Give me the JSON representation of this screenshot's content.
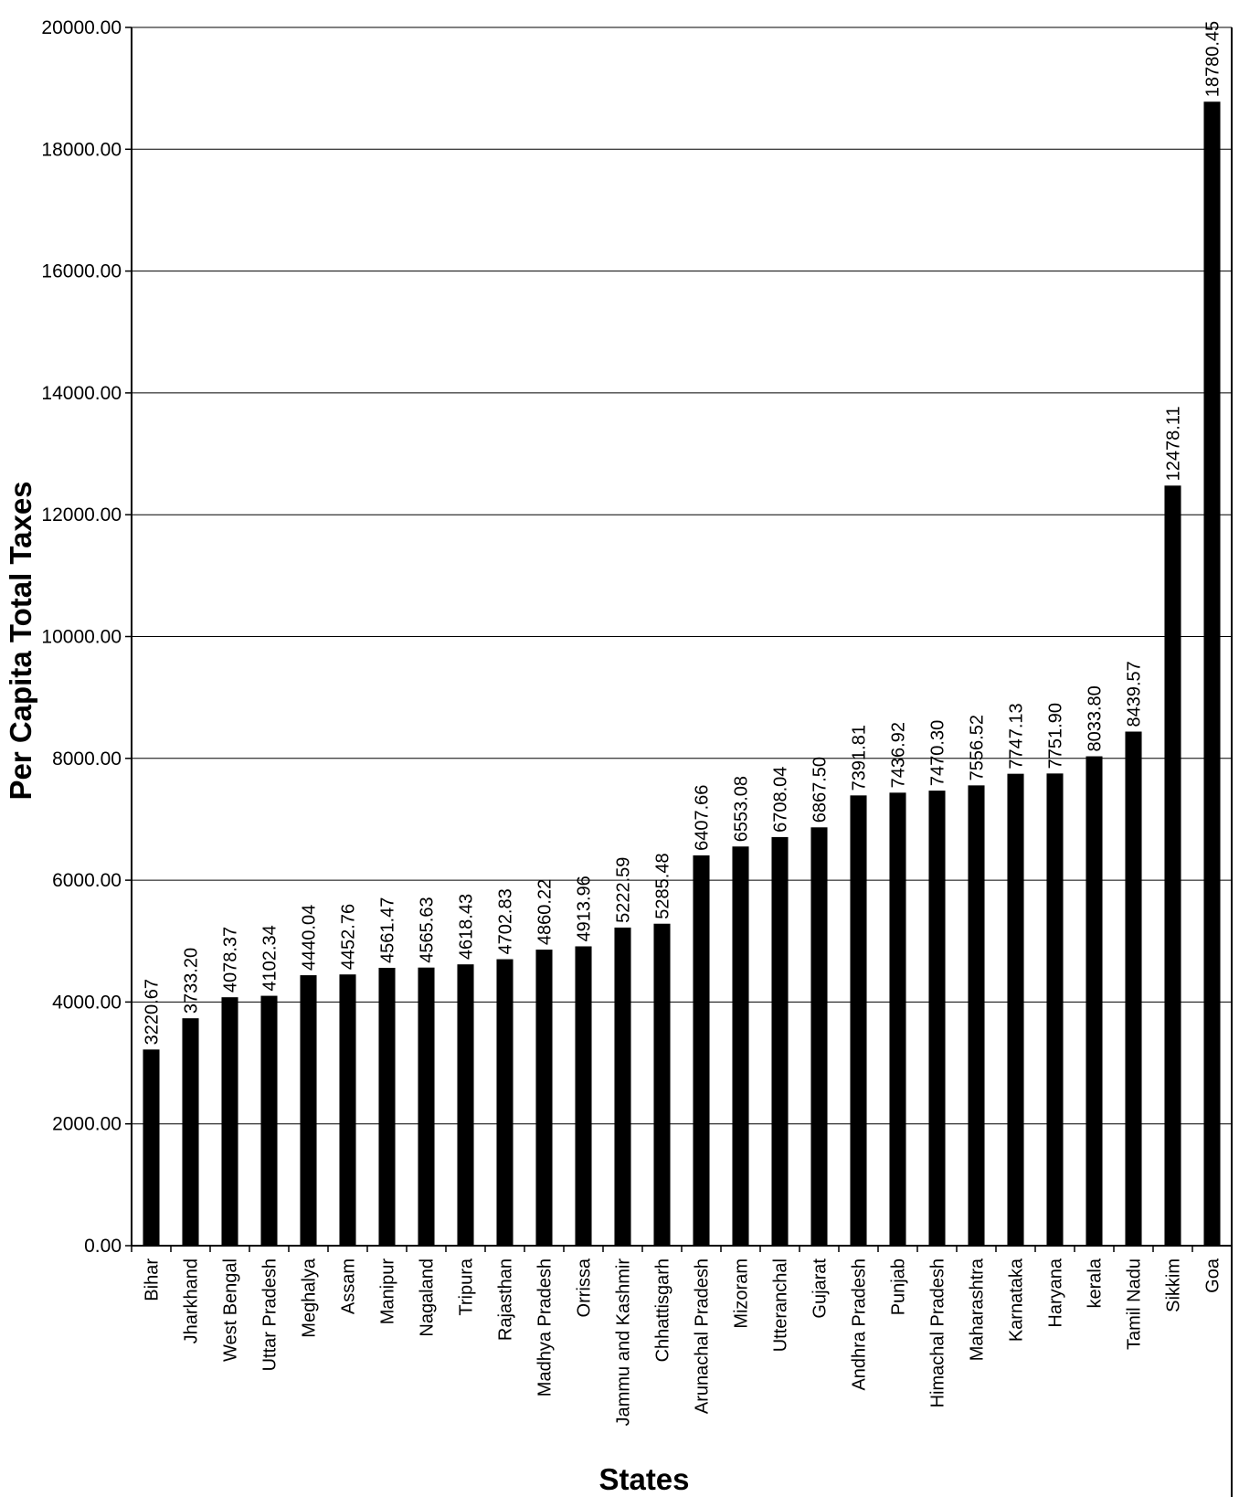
{
  "chart_data": {
    "type": "bar",
    "title": "",
    "xlabel": "States",
    "ylabel": "Per Capita Total Taxes",
    "ylim": [
      0,
      20000
    ],
    "yticks": [
      "0.00",
      "2000.00",
      "4000.00",
      "6000.00",
      "8000.00",
      "10000.00",
      "12000.00",
      "14000.00",
      "16000.00",
      "18000.00",
      "20000.00"
    ],
    "grid": true,
    "legend": "none",
    "bar_color": "#000000",
    "categories": [
      "Bihar",
      "Jharkhand",
      "West Bengal",
      "Uttar Pradesh",
      "Meghalya",
      "Assam",
      "Manipur",
      "Nagaland",
      "Tripura",
      "Rajasthan",
      "Madhya Pradesh",
      "Orrissa",
      "Jammu and Kashmir",
      "Chhattisgarh",
      "Arunachal Pradesh",
      "Mizoram",
      "Utteranchal",
      "Gujarat",
      "Andhra Pradesh",
      "Punjab",
      "Himachal Pradesh",
      "Maharashtra",
      "Karnataka",
      "Haryana",
      "kerala",
      "Tamil Nadu",
      "Sikkim",
      "Goa"
    ],
    "values": [
      3220.67,
      3733.2,
      4078.37,
      4102.34,
      4440.04,
      4452.76,
      4561.47,
      4565.63,
      4618.43,
      4702.83,
      4860.22,
      4913.96,
      5222.59,
      5285.48,
      6407.66,
      6553.08,
      6708.04,
      6867.5,
      7391.81,
      7436.92,
      7470.3,
      7556.52,
      7747.13,
      7751.9,
      8033.8,
      8439.57,
      12478.11,
      18780.45
    ],
    "data_labels": [
      "3220.67",
      "3733.20",
      "4078.37",
      "4102.34",
      "4440.04",
      "4452.76",
      "4561.47",
      "4565.63",
      "4618.43",
      "4702.83",
      "4860.22",
      "4913.96",
      "5222.59",
      "5285.48",
      "6407.66",
      "6553.08",
      "6708.04",
      "6867.50",
      "7391.81",
      "7436.92",
      "7470.30",
      "7556.52",
      "7747.13",
      "7751.90",
      "8033.80",
      "8439.57",
      "12478.11",
      "18780.45"
    ]
  }
}
